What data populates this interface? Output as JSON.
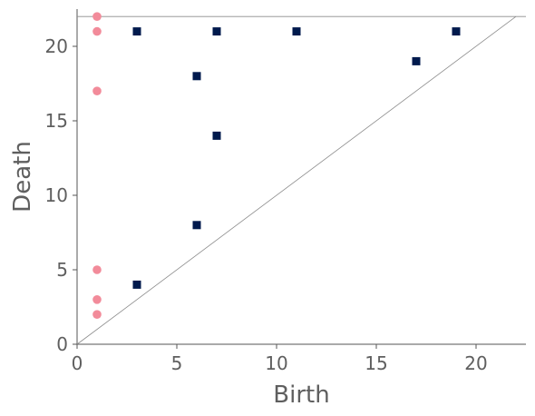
{
  "chart_data": {
    "type": "scatter",
    "title": "",
    "xlabel": "Birth",
    "ylabel": "Death",
    "xlim": [
      0,
      22.5
    ],
    "ylim": [
      0,
      22.5
    ],
    "xticks": [
      0,
      5,
      10,
      15,
      20
    ],
    "yticks": [
      0,
      5,
      10,
      15,
      20
    ],
    "grid": false,
    "legend": "none",
    "infinity_line": 22,
    "diagonal": true,
    "series": [
      {
        "marker": "circle",
        "color": "#f28b9a",
        "points": [
          [
            1,
            22
          ],
          [
            1,
            21
          ],
          [
            1,
            17
          ],
          [
            1,
            5
          ],
          [
            1,
            3
          ],
          [
            1,
            2
          ]
        ]
      },
      {
        "marker": "square",
        "color": "#001a4d",
        "points": [
          [
            3,
            21
          ],
          [
            7,
            21
          ],
          [
            11,
            21
          ],
          [
            19,
            21
          ],
          [
            6,
            18
          ],
          [
            17,
            19
          ],
          [
            7,
            14
          ],
          [
            6,
            8
          ],
          [
            3,
            4
          ]
        ]
      }
    ]
  }
}
